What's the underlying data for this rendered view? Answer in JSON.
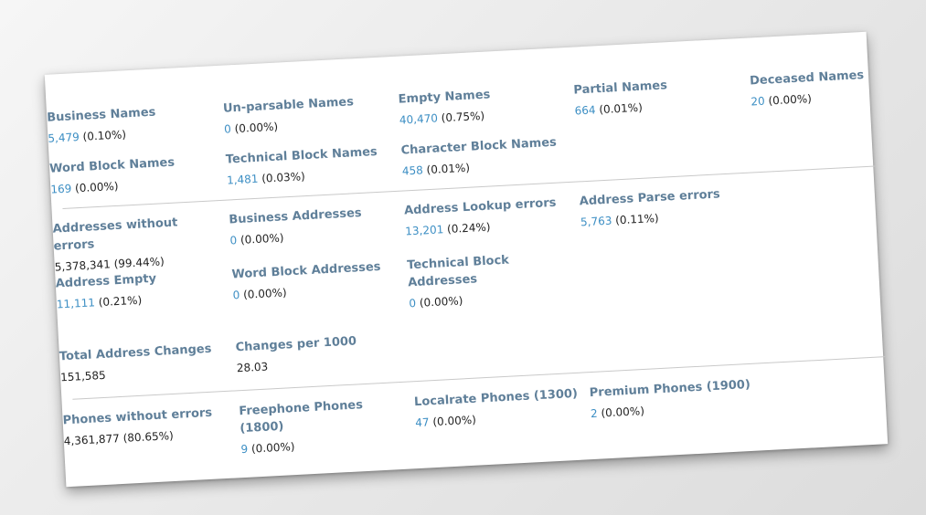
{
  "sections": {
    "names": [
      {
        "label": "Business Names",
        "count": "5,479",
        "pct": "(0.10%)"
      },
      {
        "label": "Un-parsable Names",
        "count": "0",
        "pct": "(0.00%)"
      },
      {
        "label": "Empty Names",
        "count": "40,470",
        "pct": "(0.75%)"
      },
      {
        "label": "Partial Names",
        "count": "664",
        "pct": "(0.01%)"
      },
      {
        "label": "Deceased Names",
        "count": "20",
        "pct": "(0.00%)"
      },
      {
        "label": "Word Block Names",
        "count": "169",
        "pct": "(0.00%)"
      },
      {
        "label": "Technical Block Names",
        "count": "1,481",
        "pct": "(0.03%)"
      },
      {
        "label": "Character Block Names",
        "count": "458",
        "pct": "(0.01%)"
      }
    ],
    "addresses": [
      {
        "label": "Addresses without errors",
        "count": "5,378,341",
        "pct": "(99.44%)"
      },
      {
        "label": "Business Addresses",
        "count": "0",
        "pct": "(0.00%)"
      },
      {
        "label": "Address Lookup errors",
        "count": "13,201",
        "pct": "(0.24%)"
      },
      {
        "label": "Address Parse errors",
        "count": "5,763",
        "pct": "(0.11%)"
      },
      {
        "label": "Address Empty",
        "count": "11,111",
        "pct": "(0.21%)"
      },
      {
        "label": "Word Block Addresses",
        "count": "0",
        "pct": "(0.00%)"
      },
      {
        "label": "Technical Block Addresses",
        "count": "0",
        "pct": "(0.00%)"
      }
    ],
    "changes": [
      {
        "label": "Total Address Changes",
        "value": "151,585"
      },
      {
        "label": "Changes per 1000",
        "value": "28.03"
      }
    ],
    "phones": [
      {
        "label": "Phones without errors",
        "count": "4,361,877",
        "pct": "(80.65%)"
      },
      {
        "label": "Freephone Phones (1800)",
        "count": "9",
        "pct": "(0.00%)"
      },
      {
        "label": "Localrate Phones (1300)",
        "count": "47",
        "pct": "(0.00%)"
      },
      {
        "label": "Premium Phones (1900)",
        "count": "2",
        "pct": "(0.00%)"
      }
    ]
  }
}
